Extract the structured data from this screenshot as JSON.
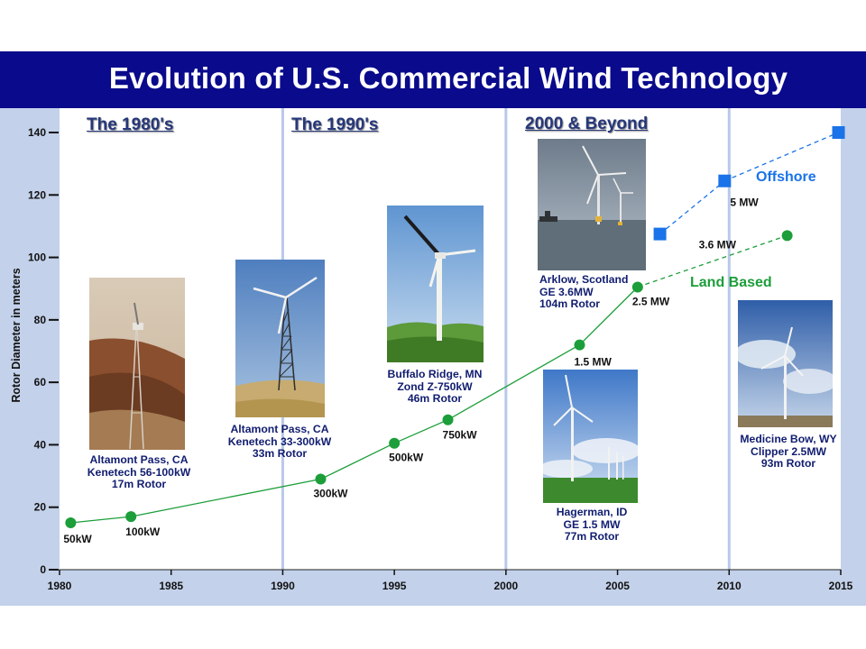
{
  "title": "Evolution of U.S. Commercial Wind Technology",
  "eras": [
    {
      "label": "The 1980's"
    },
    {
      "label": "The 1990's"
    },
    {
      "label": "2000 & Beyond"
    }
  ],
  "photos": [
    {
      "caption": "Altamont Pass, CA\nKenetech 56-100kW\n17m Rotor"
    },
    {
      "caption": "Altamont Pass, CA\nKenetech 33-300kW\n33m Rotor"
    },
    {
      "caption": "Buffalo Ridge, MN\nZond Z-750kW\n46m Rotor"
    },
    {
      "caption": "Arklow, Scotland\nGE 3.6MW\n104m Rotor"
    },
    {
      "caption": "Hagerman, ID\nGE 1.5 MW\n77m Rotor"
    },
    {
      "caption": "Medicine Bow, WY\nClipper 2.5MW\n93m Rotor"
    }
  ],
  "chart_data": {
    "type": "line",
    "title": "Evolution of U.S. Commercial Wind Technology",
    "xlabel": "",
    "ylabel": "Rotor Diameter in meters",
    "xlim": [
      1980,
      2015
    ],
    "ylim": [
      0,
      140
    ],
    "xticks": [
      1980,
      1985,
      1990,
      1995,
      2000,
      2005,
      2010,
      2015
    ],
    "yticks": [
      0,
      20,
      40,
      60,
      80,
      100,
      120,
      140
    ],
    "grid": false,
    "series": [
      {
        "name": "Land Based",
        "color": "#1c9e3a",
        "marker": "circle",
        "points": [
          {
            "x": 1980.5,
            "y": 15,
            "label": "50kW"
          },
          {
            "x": 1983.2,
            "y": 17,
            "label": "100kW"
          },
          {
            "x": 1991.7,
            "y": 29,
            "label": "300kW"
          },
          {
            "x": 1995.0,
            "y": 40.5,
            "label": "500kW"
          },
          {
            "x": 1997.4,
            "y": 48,
            "label": "750kW"
          },
          {
            "x": 2003.3,
            "y": 72,
            "label": "1.5 MW"
          },
          {
            "x": 2005.9,
            "y": 90.5,
            "label": "2.5 MW"
          },
          {
            "x": 2012.6,
            "y": 107,
            "label": "3.6 MW"
          }
        ],
        "projected_from_index": 6
      },
      {
        "name": "Offshore",
        "color": "#1a73e8",
        "marker": "square",
        "points": [
          {
            "x": 2006.9,
            "y": 107.5,
            "label": ""
          },
          {
            "x": 2009.8,
            "y": 124.5,
            "label": "5 MW"
          },
          {
            "x": 2014.9,
            "y": 140,
            "label": ""
          }
        ],
        "projected_from_index": 0
      }
    ]
  }
}
